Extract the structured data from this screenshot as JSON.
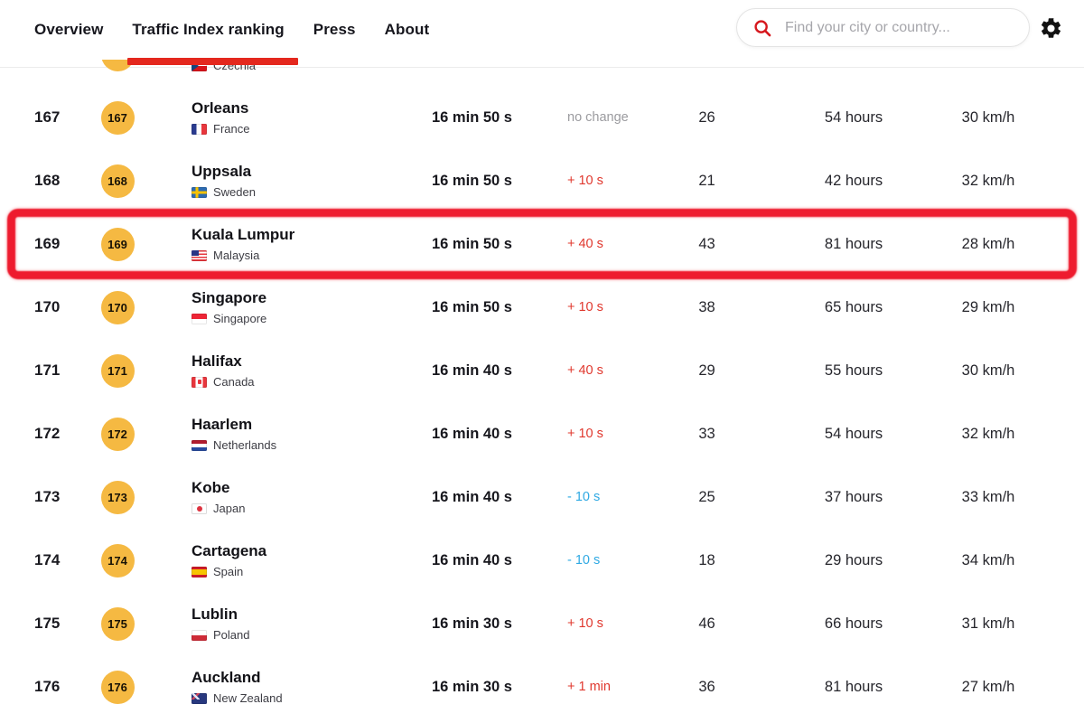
{
  "nav": {
    "items": [
      {
        "label": "Overview",
        "active": false
      },
      {
        "label": "Traffic Index ranking",
        "active": true
      },
      {
        "label": "Press",
        "active": false
      },
      {
        "label": "About",
        "active": false
      }
    ]
  },
  "search": {
    "icon": "search-icon",
    "placeholder": "Find your city or country..."
  },
  "settings": {
    "icon": "gear-icon"
  },
  "colors": {
    "accent_red": "#e4281e",
    "badge_yellow": "#f5b942",
    "change_up_red": "#e0382e",
    "change_down_blue": "#2fa9e3",
    "change_none_gray": "#9b9b9f",
    "marker_red": "#ee1b2e"
  },
  "table": {
    "partial_top_row": {
      "country": "Czechia",
      "flag": "cz"
    },
    "highlight": {
      "target_rank": "169",
      "type": "red-marker-rectangle"
    },
    "rows": [
      {
        "rank": "167",
        "badge": "167",
        "city": "Orleans",
        "country": "France",
        "flag": "fr",
        "time": "16 min 50 s",
        "change": "no change",
        "change_dir": "none",
        "congestion": "26",
        "hours": "54 hours",
        "speed": "30 km/h",
        "highlighted": false
      },
      {
        "rank": "168",
        "badge": "168",
        "city": "Uppsala",
        "country": "Sweden",
        "flag": "se",
        "time": "16 min 50 s",
        "change": "+ 10 s",
        "change_dir": "up",
        "congestion": "21",
        "hours": "42 hours",
        "speed": "32 km/h",
        "highlighted": false
      },
      {
        "rank": "169",
        "badge": "169",
        "city": "Kuala Lumpur",
        "country": "Malaysia",
        "flag": "my",
        "time": "16 min 50 s",
        "change": "+ 40 s",
        "change_dir": "up",
        "congestion": "43",
        "hours": "81 hours",
        "speed": "28 km/h",
        "highlighted": true
      },
      {
        "rank": "170",
        "badge": "170",
        "city": "Singapore",
        "country": "Singapore",
        "flag": "sg",
        "time": "16 min 50 s",
        "change": "+ 10 s",
        "change_dir": "up",
        "congestion": "38",
        "hours": "65 hours",
        "speed": "29 km/h",
        "highlighted": false
      },
      {
        "rank": "171",
        "badge": "171",
        "city": "Halifax",
        "country": "Canada",
        "flag": "ca",
        "time": "16 min 40 s",
        "change": "+ 40 s",
        "change_dir": "up",
        "congestion": "29",
        "hours": "55 hours",
        "speed": "30 km/h",
        "highlighted": false
      },
      {
        "rank": "172",
        "badge": "172",
        "city": "Haarlem",
        "country": "Netherlands",
        "flag": "nl",
        "time": "16 min 40 s",
        "change": "+ 10 s",
        "change_dir": "up",
        "congestion": "33",
        "hours": "54 hours",
        "speed": "32 km/h",
        "highlighted": false
      },
      {
        "rank": "173",
        "badge": "173",
        "city": "Kobe",
        "country": "Japan",
        "flag": "jp",
        "time": "16 min 40 s",
        "change": "- 10 s",
        "change_dir": "down",
        "congestion": "25",
        "hours": "37 hours",
        "speed": "33 km/h",
        "highlighted": false
      },
      {
        "rank": "174",
        "badge": "174",
        "city": "Cartagena",
        "country": "Spain",
        "flag": "es",
        "time": "16 min 40 s",
        "change": "- 10 s",
        "change_dir": "down",
        "congestion": "18",
        "hours": "29 hours",
        "speed": "34 km/h",
        "highlighted": false
      },
      {
        "rank": "175",
        "badge": "175",
        "city": "Lublin",
        "country": "Poland",
        "flag": "pl",
        "time": "16 min 30 s",
        "change": "+ 10 s",
        "change_dir": "up",
        "congestion": "46",
        "hours": "66 hours",
        "speed": "31 km/h",
        "highlighted": false
      },
      {
        "rank": "176",
        "badge": "176",
        "city": "Auckland",
        "country": "New Zealand",
        "flag": "nz",
        "time": "16 min 30 s",
        "change": "+ 1 min",
        "change_dir": "up",
        "congestion": "36",
        "hours": "81 hours",
        "speed": "27 km/h",
        "highlighted": false
      }
    ]
  }
}
